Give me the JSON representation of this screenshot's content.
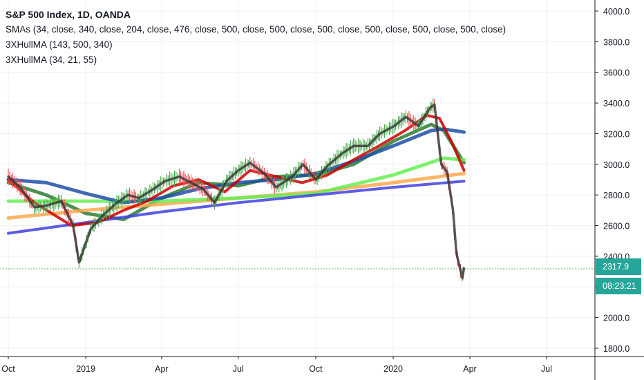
{
  "header": {
    "title": "S&P 500 Index, 1D, OANDA",
    "study_lines": [
      "SMAs (34, close, 340, close, 204, close, 476, close, 500, close, 500, close, 500, close, 500, close, 500, close, 500, close)",
      "3XHullMA (143, 500, 340)",
      "3XHullMA (34, 21, 55)"
    ]
  },
  "price_tag": {
    "value": "2317.9",
    "color": "#26a69a"
  },
  "countdown_tag": {
    "value": "08:23:21",
    "color": "#26a69a"
  },
  "colors": {
    "up": "#4caf50",
    "down": "#ef5350",
    "grid": "#eef0f3",
    "axis_text": "#131722"
  },
  "chart_data": {
    "type": "line",
    "symbol": "S&P 500 Index",
    "interval": "1D",
    "x_ticks": [
      "Oct",
      "2019",
      "Apr",
      "Jul",
      "Oct",
      "2020",
      "Apr",
      "Jul"
    ],
    "x_tick_dates": [
      "2018-10-01",
      "2019-01-01",
      "2019-04-01",
      "2019-07-01",
      "2019-10-01",
      "2020-01-01",
      "2020-04-01",
      "2020-07-01"
    ],
    "y_ticks": [
      "1800.0",
      "2000.0",
      "2200.0",
      "2400.0",
      "2600.0",
      "2800.0",
      "3000.0",
      "3200.0",
      "3400.0",
      "3600.0",
      "3800.0",
      "4000.0"
    ],
    "ylim": [
      1760,
      4050
    ],
    "last_price": 2317.9,
    "price_line": 2317.9,
    "grid": true,
    "legend_position": "top-left",
    "price_series": {
      "name": "S&P 500",
      "dates": [
        "2018-10-01",
        "2018-10-15",
        "2018-11-01",
        "2018-11-15",
        "2018-12-03",
        "2018-12-17",
        "2018-12-24",
        "2019-01-07",
        "2019-01-22",
        "2019-02-05",
        "2019-02-20",
        "2019-03-05",
        "2019-03-20",
        "2019-04-05",
        "2019-04-22",
        "2019-05-06",
        "2019-05-20",
        "2019-06-03",
        "2019-06-17",
        "2019-07-01",
        "2019-07-15",
        "2019-08-01",
        "2019-08-15",
        "2019-09-03",
        "2019-09-16",
        "2019-10-01",
        "2019-10-15",
        "2019-11-01",
        "2019-11-15",
        "2019-12-02",
        "2019-12-16",
        "2020-01-02",
        "2020-01-16",
        "2020-01-31",
        "2020-02-14",
        "2020-02-19",
        "2020-02-27",
        "2020-03-05",
        "2020-03-12",
        "2020-03-16",
        "2020-03-19",
        "2020-03-23",
        "2020-03-25"
      ],
      "values": [
        2920,
        2850,
        2720,
        2730,
        2760,
        2600,
        2360,
        2580,
        2670,
        2740,
        2800,
        2780,
        2830,
        2890,
        2920,
        2880,
        2840,
        2750,
        2890,
        2960,
        3010,
        2940,
        2850,
        2920,
        3000,
        2900,
        2990,
        3070,
        3120,
        3120,
        3200,
        3250,
        3310,
        3250,
        3370,
        3390,
        3000,
        2950,
        2700,
        2420,
        2350,
        2260,
        2320
      ]
    },
    "series": [
      {
        "name": "SMA 34",
        "color": "#2e7d32",
        "dates": [
          "2018-10-01",
          "2018-11-15",
          "2019-01-01",
          "2019-02-15",
          "2019-04-01",
          "2019-05-15",
          "2019-07-01",
          "2019-08-15",
          "2019-10-01",
          "2019-11-15",
          "2020-01-01",
          "2020-02-15",
          "2020-03-01",
          "2020-03-25"
        ],
        "values": [
          2880,
          2800,
          2680,
          2640,
          2780,
          2880,
          2860,
          2920,
          2930,
          3000,
          3150,
          3260,
          3220,
          3010
        ]
      },
      {
        "name": "SMA 340",
        "color": "#ffa94d",
        "dates": [
          "2018-10-01",
          "2019-01-01",
          "2019-04-01",
          "2019-07-01",
          "2019-10-01",
          "2020-01-01",
          "2020-03-25"
        ],
        "values": [
          2650,
          2700,
          2740,
          2780,
          2820,
          2880,
          2940
        ]
      },
      {
        "name": "SMA 204",
        "color": "#66ee55",
        "dates": [
          "2018-10-01",
          "2019-01-01",
          "2019-04-01",
          "2019-07-01",
          "2019-10-01",
          "2020-01-01",
          "2020-03-01",
          "2020-03-25"
        ],
        "values": [
          2760,
          2760,
          2760,
          2780,
          2810,
          2930,
          3040,
          3030
        ]
      },
      {
        "name": "SMA 476",
        "color": "#4040e0",
        "dates": [
          "2018-10-01",
          "2019-01-01",
          "2019-04-01",
          "2019-07-01",
          "2019-10-01",
          "2020-01-01",
          "2020-03-25"
        ],
        "values": [
          2550,
          2620,
          2690,
          2750,
          2800,
          2850,
          2890
        ]
      },
      {
        "name": "3XHullMA (143, 500, 340)",
        "color": "#1e4fa6",
        "dates": [
          "2018-10-01",
          "2018-11-15",
          "2019-01-01",
          "2019-02-15",
          "2019-04-01",
          "2019-05-15",
          "2019-07-01",
          "2019-08-15",
          "2019-10-01",
          "2019-11-15",
          "2020-01-01",
          "2020-02-15",
          "2020-03-01",
          "2020-03-25"
        ],
        "values": [
          2900,
          2880,
          2810,
          2750,
          2780,
          2840,
          2880,
          2900,
          2940,
          3020,
          3120,
          3220,
          3230,
          3210
        ]
      },
      {
        "name": "3XHullMA (34, 21, 55)",
        "color": "#cc0000",
        "dates": [
          "2018-10-01",
          "2018-11-01",
          "2018-12-15",
          "2019-01-15",
          "2019-02-15",
          "2019-03-15",
          "2019-04-15",
          "2019-05-15",
          "2019-06-15",
          "2019-07-15",
          "2019-08-15",
          "2019-09-15",
          "2019-10-15",
          "2019-11-15",
          "2019-12-15",
          "2020-01-15",
          "2020-02-10",
          "2020-02-25",
          "2020-03-10",
          "2020-03-25"
        ],
        "values": [
          2900,
          2750,
          2600,
          2620,
          2700,
          2760,
          2860,
          2900,
          2820,
          2960,
          2920,
          2880,
          2930,
          3030,
          3120,
          3220,
          3320,
          3300,
          3150,
          2960
        ]
      }
    ]
  }
}
